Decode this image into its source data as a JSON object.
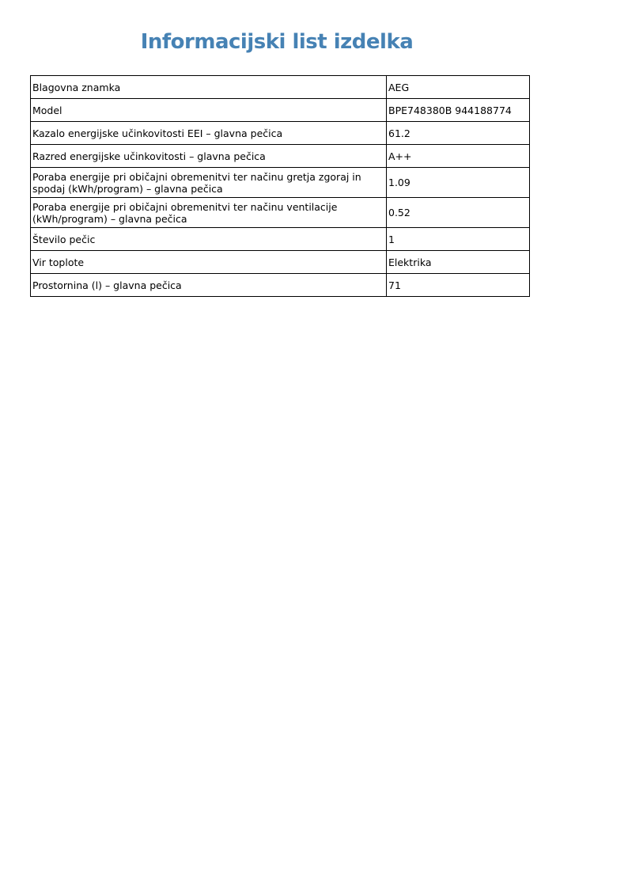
{
  "title": "Informacijski list izdelka",
  "title_color": "#4682b4",
  "rows": [
    {
      "label": "Blagovna znamka",
      "value": "AEG"
    },
    {
      "label": "Model",
      "value": "BPE748380B 944188774"
    },
    {
      "label": "Kazalo energijske učinkovitosti EEI – glavna pečica",
      "value": "61.2"
    },
    {
      "label": "Razred energijske učinkovitosti – glavna pečica",
      "value": "A++"
    },
    {
      "label": "Poraba energije pri običajni obremenitvi ter načinu gretja zgoraj in spodaj (kWh/program) – glavna pečica",
      "value": "1.09"
    },
    {
      "label": "Poraba energije pri običajni obremenitvi ter načinu ventilacije (kWh/program) – glavna pečica",
      "value": "0.52"
    },
    {
      "label": "Število pečic",
      "value": "1"
    },
    {
      "label": "Vir toplote",
      "value": "Elektrika"
    },
    {
      "label": "Prostornina (l) – glavna pečica",
      "value": "71"
    }
  ]
}
